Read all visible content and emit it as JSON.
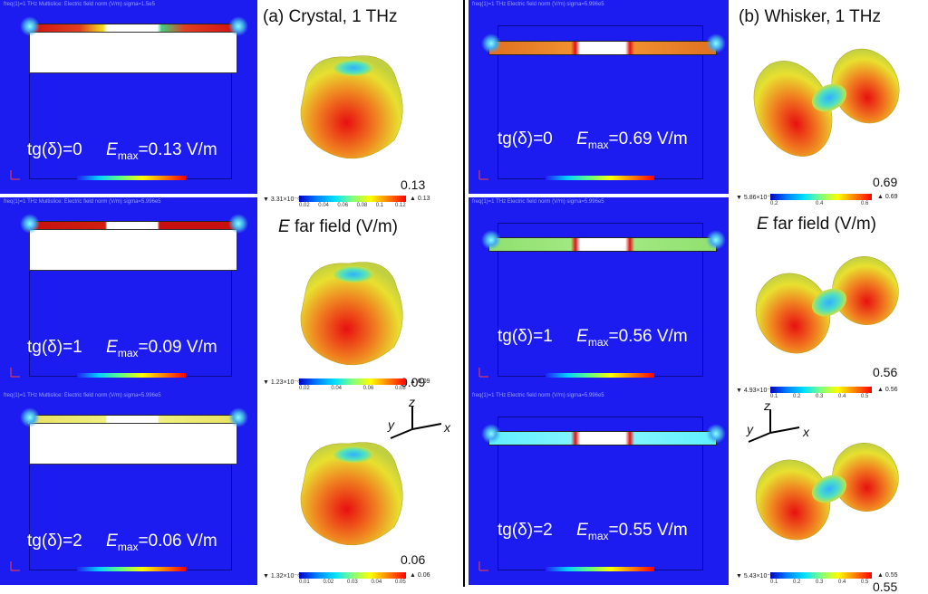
{
  "panels": [
    {
      "title": "(a) Crystal, 1 THz",
      "far_field_label": "far field (V/m)",
      "far_field_symbol": "E",
      "rows": [
        {
          "tg_label": "tg(δ)=0",
          "emax_value": "=0.13 V/m",
          "peak": "0.13",
          "cb_min": "▼ 3.31×10⁻⁸",
          "cb_max": "▲ 0.13",
          "header": "freq(1)=1 THz   Multislice: Electric field norm (V/m)  sigma=1.5e5",
          "ticks": [
            "0.02",
            "0.04",
            "0.06",
            "0.08",
            "0.1",
            "0.12"
          ]
        },
        {
          "tg_label": "tg(δ)=1",
          "emax_value": "=0.09 V/m",
          "peak": "0.09",
          "cb_min": "▼ 1.23×10⁻⁸",
          "cb_max": "▲ 0.09",
          "header": "freq(1)=1 THz   Multislice: Electric field norm (V/m)  sigma=5.996e5",
          "ticks": [
            "0.02",
            "0.04",
            "0.06",
            "0.08"
          ]
        },
        {
          "tg_label": "tg(δ)=2",
          "emax_value": "=0.06 V/m",
          "peak": "0.06",
          "cb_min": "▼ 1.32×10⁻⁸",
          "cb_max": "▲ 0.06",
          "header": "freq(1)=1 THz   Multislice: Electric field norm (V/m)  sigma=5.996e5",
          "ticks": [
            "0.01",
            "0.02",
            "0.03",
            "0.04",
            "0.05"
          ]
        }
      ]
    },
    {
      "title": "(b) Whisker, 1 THz",
      "far_field_label": "far field (V/m)",
      "far_field_symbol": "E",
      "rows": [
        {
          "tg_label": "tg(δ)=0",
          "emax_value": "=0.69 V/m",
          "peak": "0.69",
          "cb_min": "▼ 5.86×10⁻⁹",
          "cb_max": "▲ 0.69",
          "header": "freq(1)=1 THz   Electric field norm (V/m)  sigma=5.996e5",
          "ticks": [
            "0.2",
            "0.4",
            "0.6"
          ]
        },
        {
          "tg_label": "tg(δ)=1",
          "emax_value": "=0.56 V/m",
          "peak": "0.56",
          "cb_min": "▼ 4.93×10⁻⁸",
          "cb_max": "▲ 0.56",
          "header": "freq(1)=1 THz   Electric field norm (V/m)  sigma=5.996e5",
          "ticks": [
            "0.1",
            "0.2",
            "0.3",
            "0.4",
            "0.5"
          ]
        },
        {
          "tg_label": "tg(δ)=2",
          "emax_value": "=0.55 V/m",
          "peak": "0.55",
          "cb_min": "▼ 5.43×10⁻⁸",
          "cb_max": "▲ 0.55",
          "header": "freq(1)=1 THz   Electric field norm (V/m)  sigma=5.996e5",
          "ticks": [
            "0.1",
            "0.2",
            "0.3",
            "0.4",
            "0.5"
          ]
        }
      ]
    }
  ],
  "emax_symbol": "E",
  "emax_sub": "max",
  "axis_labels": {
    "z": "z",
    "y": "y",
    "x": "x"
  },
  "colors": {
    "field_bg": "#1c1cf0",
    "hot": "#e01010",
    "warm": "#f0c020",
    "cool": "#30d0ff"
  }
}
